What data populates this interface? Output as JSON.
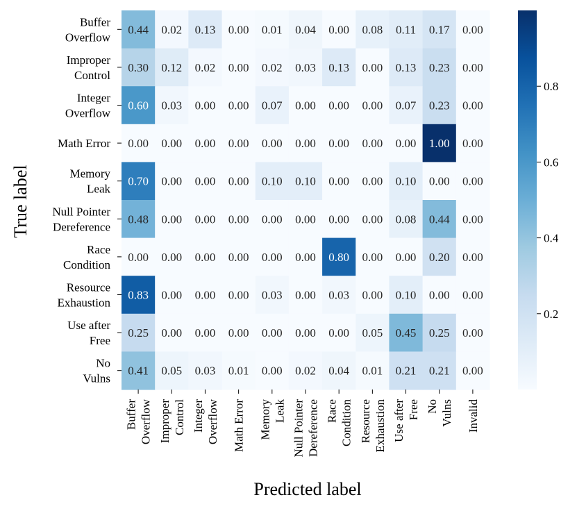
{
  "chart_data": {
    "type": "heatmap",
    "title": "",
    "xlabel": "Predicted label",
    "ylabel": "True label",
    "rows": [
      [
        "Buffer",
        "Overflow"
      ],
      [
        "Improper",
        "Control"
      ],
      [
        "Integer",
        "Overflow"
      ],
      [
        "Math Error"
      ],
      [
        "Memory",
        "Leak"
      ],
      [
        "Null Pointer",
        "Dereference"
      ],
      [
        "Race",
        "Condition"
      ],
      [
        "Resource",
        "Exhaustion"
      ],
      [
        "Use after",
        "Free"
      ],
      [
        "No",
        "Vulns"
      ]
    ],
    "columns": [
      [
        "Buffer",
        "Overflow"
      ],
      [
        "Improper",
        "Control"
      ],
      [
        "Integer",
        "Overflow"
      ],
      [
        "Math Error"
      ],
      [
        "Memory",
        "Leak"
      ],
      [
        "Null Pointer",
        "Dereference"
      ],
      [
        "Race",
        "Condition"
      ],
      [
        "Resource",
        "Exhaustion"
      ],
      [
        "Use after",
        "Free"
      ],
      [
        "No",
        "Vulns"
      ],
      [
        "Invalid"
      ]
    ],
    "values": [
      [
        "0.44",
        "0.02",
        "0.13",
        "0.00",
        "0.01",
        "0.04",
        "0.00",
        "0.08",
        "0.11",
        "0.17",
        "0.00"
      ],
      [
        "0.30",
        "0.12",
        "0.02",
        "0.00",
        "0.02",
        "0.03",
        "0.13",
        "0.00",
        "0.13",
        "0.23",
        "0.00"
      ],
      [
        "0.60",
        "0.03",
        "0.00",
        "0.00",
        "0.07",
        "0.00",
        "0.00",
        "0.00",
        "0.07",
        "0.23",
        "0.00"
      ],
      [
        "0.00",
        "0.00",
        "0.00",
        "0.00",
        "0.00",
        "0.00",
        "0.00",
        "0.00",
        "0.00",
        "1.00",
        "0.00"
      ],
      [
        "0.70",
        "0.00",
        "0.00",
        "0.00",
        "0.10",
        "0.10",
        "0.00",
        "0.00",
        "0.10",
        "0.00",
        "0.00"
      ],
      [
        "0.48",
        "0.00",
        "0.00",
        "0.00",
        "0.00",
        "0.00",
        "0.00",
        "0.00",
        "0.08",
        "0.44",
        "0.00"
      ],
      [
        "0.00",
        "0.00",
        "0.00",
        "0.00",
        "0.00",
        "0.00",
        "0.80",
        "0.00",
        "0.00",
        "0.20",
        "0.00"
      ],
      [
        "0.83",
        "0.00",
        "0.00",
        "0.00",
        "0.03",
        "0.00",
        "0.03",
        "0.00",
        "0.10",
        "0.00",
        "0.00"
      ],
      [
        "0.25",
        "0.00",
        "0.00",
        "0.00",
        "0.00",
        "0.00",
        "0.00",
        "0.05",
        "0.45",
        "0.25",
        "0.00"
      ],
      [
        "0.41",
        "0.05",
        "0.03",
        "0.01",
        "0.00",
        "0.02",
        "0.04",
        "0.01",
        "0.21",
        "0.21",
        "0.00"
      ]
    ],
    "colormap": "Blues",
    "color_range": [
      0,
      1
    ],
    "colorbar_ticks": [
      "0.2",
      "0.4",
      "0.6",
      "0.8"
    ],
    "colorbar_position": "right"
  }
}
